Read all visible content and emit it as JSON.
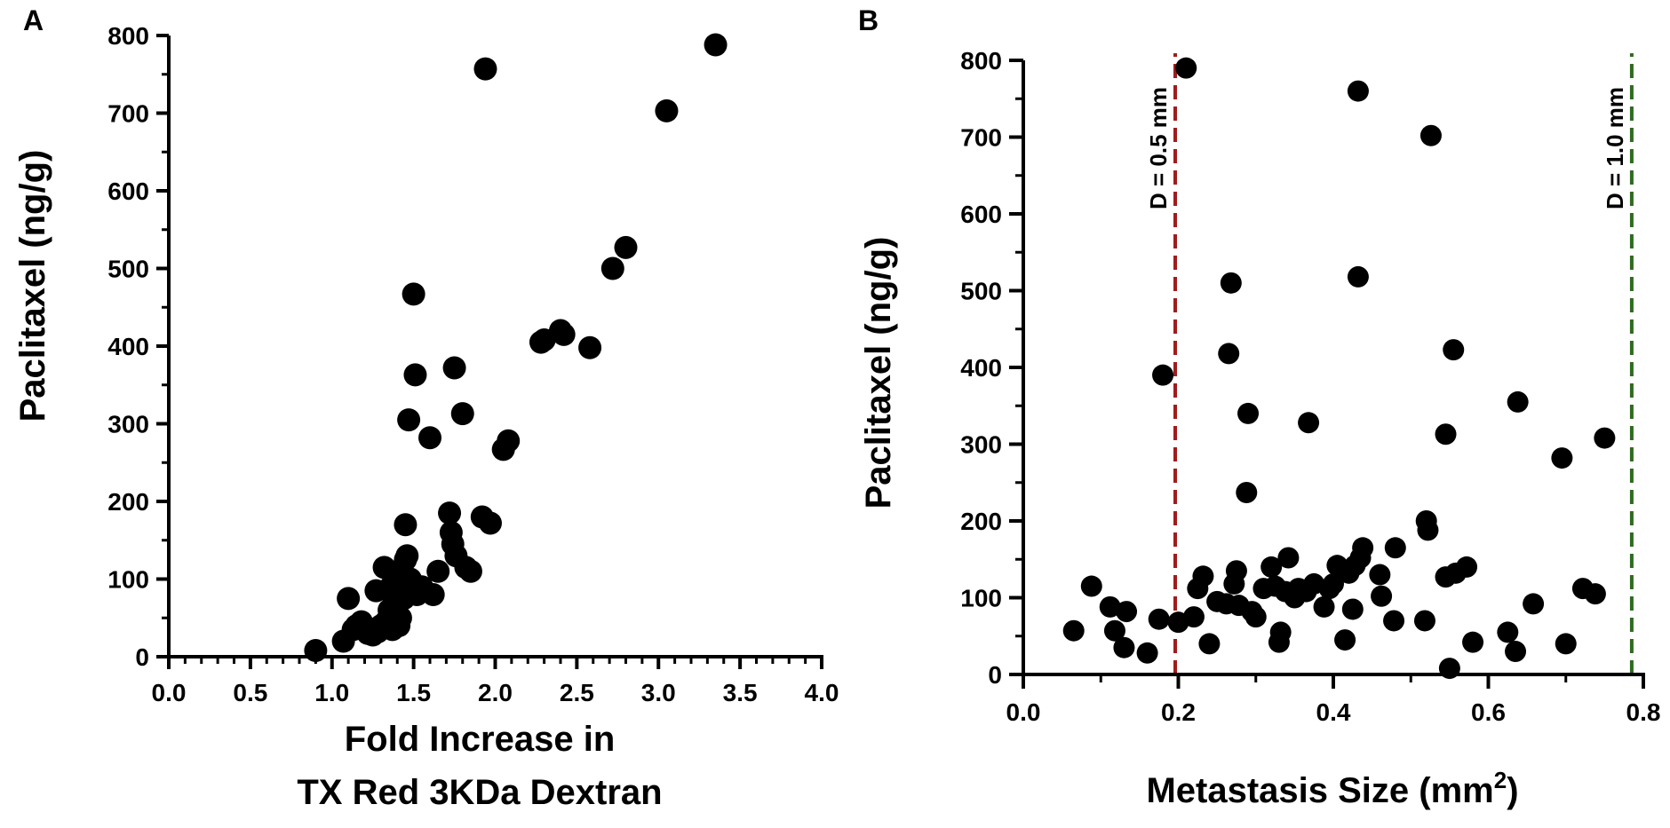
{
  "chart_data": [
    {
      "panel_label": "A",
      "type": "scatter",
      "title": "",
      "xlabel_lines": [
        "Fold Increase in",
        "TX Red 3KDa Dextran"
      ],
      "ylabel": "Paclitaxel  (ng/g)",
      "xlim": [
        0,
        4
      ],
      "ylim": [
        0,
        800
      ],
      "xticks": [
        0.0,
        0.5,
        1.0,
        1.5,
        2.0,
        2.5,
        3.0,
        3.5,
        4.0
      ],
      "xtick_labels": [
        "0.0",
        "0.5",
        "1.0",
        "1.5",
        "2.0",
        "2.5",
        "3.0",
        "3.5",
        "4.0"
      ],
      "yticks": [
        0,
        100,
        200,
        300,
        400,
        500,
        600,
        700,
        800
      ],
      "ytick_labels": [
        "0",
        "100",
        "200",
        "300",
        "400",
        "500",
        "600",
        "700",
        "800"
      ],
      "grid": false,
      "points": [
        [
          0.9,
          8
        ],
        [
          1.07,
          20
        ],
        [
          1.1,
          75
        ],
        [
          1.13,
          35
        ],
        [
          1.15,
          40
        ],
        [
          1.18,
          45
        ],
        [
          1.2,
          38
        ],
        [
          1.22,
          30
        ],
        [
          1.25,
          28
        ],
        [
          1.27,
          85
        ],
        [
          1.28,
          32
        ],
        [
          1.3,
          40
        ],
        [
          1.32,
          115
        ],
        [
          1.33,
          45
        ],
        [
          1.35,
          60
        ],
        [
          1.36,
          90
        ],
        [
          1.37,
          35
        ],
        [
          1.38,
          70
        ],
        [
          1.4,
          110
        ],
        [
          1.41,
          40
        ],
        [
          1.42,
          50
        ],
        [
          1.43,
          105
        ],
        [
          1.44,
          75
        ],
        [
          1.45,
          170
        ],
        [
          1.45,
          125
        ],
        [
          1.46,
          130
        ],
        [
          1.47,
          305
        ],
        [
          1.48,
          100
        ],
        [
          1.5,
          467
        ],
        [
          1.51,
          363
        ],
        [
          1.52,
          80
        ],
        [
          1.55,
          90
        ],
        [
          1.6,
          282
        ],
        [
          1.62,
          80
        ],
        [
          1.65,
          110
        ],
        [
          1.72,
          185
        ],
        [
          1.73,
          160
        ],
        [
          1.74,
          145
        ],
        [
          1.75,
          372
        ],
        [
          1.76,
          130
        ],
        [
          1.8,
          313
        ],
        [
          1.82,
          115
        ],
        [
          1.85,
          110
        ],
        [
          1.92,
          180
        ],
        [
          1.94,
          757
        ],
        [
          1.97,
          172
        ],
        [
          2.05,
          267
        ],
        [
          2.08,
          278
        ],
        [
          2.28,
          405
        ],
        [
          2.3,
          408
        ],
        [
          2.4,
          420
        ],
        [
          2.42,
          415
        ],
        [
          2.58,
          398
        ],
        [
          2.72,
          500
        ],
        [
          2.8,
          527
        ],
        [
          3.05,
          703
        ],
        [
          3.35,
          788
        ]
      ]
    },
    {
      "panel_label": "B",
      "type": "scatter",
      "title": "",
      "xlabel": "Metastasis Size (mm",
      "xlabel_superscript": "2",
      "xlabel_suffix": ")",
      "ylabel": "Paclitaxel  (ng/g)",
      "xlim": [
        0,
        0.8
      ],
      "ylim": [
        0,
        800
      ],
      "xticks": [
        0.0,
        0.2,
        0.4,
        0.6,
        0.8
      ],
      "xtick_labels": [
        "0.0",
        "0.2",
        "0.4",
        "0.6",
        "0.8"
      ],
      "yticks": [
        0,
        100,
        200,
        300,
        400,
        500,
        600,
        700,
        800
      ],
      "ytick_labels": [
        "0",
        "100",
        "200",
        "300",
        "400",
        "500",
        "600",
        "700",
        "800"
      ],
      "grid": false,
      "reference_lines": [
        {
          "x": 0.196,
          "label": "D = 0.5 mm",
          "color": "#a01c1c"
        },
        {
          "x": 0.785,
          "label": "D = 1.0 mm",
          "color": "#2e6b1f"
        }
      ],
      "points": [
        [
          0.065,
          57
        ],
        [
          0.088,
          115
        ],
        [
          0.112,
          88
        ],
        [
          0.118,
          57
        ],
        [
          0.13,
          35
        ],
        [
          0.133,
          82
        ],
        [
          0.16,
          28
        ],
        [
          0.175,
          72
        ],
        [
          0.18,
          390
        ],
        [
          0.2,
          68
        ],
        [
          0.21,
          790
        ],
        [
          0.22,
          75
        ],
        [
          0.225,
          112
        ],
        [
          0.232,
          128
        ],
        [
          0.24,
          40
        ],
        [
          0.25,
          95
        ],
        [
          0.262,
          92
        ],
        [
          0.265,
          418
        ],
        [
          0.268,
          510
        ],
        [
          0.272,
          118
        ],
        [
          0.275,
          135
        ],
        [
          0.278,
          90
        ],
        [
          0.288,
          237
        ],
        [
          0.29,
          340
        ],
        [
          0.295,
          82
        ],
        [
          0.3,
          75
        ],
        [
          0.31,
          112
        ],
        [
          0.32,
          140
        ],
        [
          0.325,
          115
        ],
        [
          0.33,
          42
        ],
        [
          0.332,
          55
        ],
        [
          0.338,
          108
        ],
        [
          0.342,
          152
        ],
        [
          0.35,
          100
        ],
        [
          0.355,
          112
        ],
        [
          0.365,
          108
        ],
        [
          0.368,
          328
        ],
        [
          0.375,
          118
        ],
        [
          0.388,
          88
        ],
        [
          0.395,
          112
        ],
        [
          0.4,
          118
        ],
        [
          0.405,
          142
        ],
        [
          0.415,
          45
        ],
        [
          0.42,
          132
        ],
        [
          0.425,
          85
        ],
        [
          0.428,
          142
        ],
        [
          0.432,
          760
        ],
        [
          0.432,
          518
        ],
        [
          0.435,
          152
        ],
        [
          0.438,
          165
        ],
        [
          0.46,
          130
        ],
        [
          0.462,
          102
        ],
        [
          0.478,
          70
        ],
        [
          0.48,
          165
        ],
        [
          0.518,
          70
        ],
        [
          0.52,
          200
        ],
        [
          0.522,
          188
        ],
        [
          0.526,
          702
        ],
        [
          0.545,
          313
        ],
        [
          0.545,
          127
        ],
        [
          0.55,
          8
        ],
        [
          0.555,
          423
        ],
        [
          0.558,
          132
        ],
        [
          0.572,
          140
        ],
        [
          0.58,
          42
        ],
        [
          0.625,
          55
        ],
        [
          0.635,
          30
        ],
        [
          0.638,
          355
        ],
        [
          0.658,
          92
        ],
        [
          0.695,
          282
        ],
        [
          0.7,
          40
        ],
        [
          0.722,
          112
        ],
        [
          0.738,
          105
        ],
        [
          0.75,
          308
        ]
      ]
    }
  ]
}
